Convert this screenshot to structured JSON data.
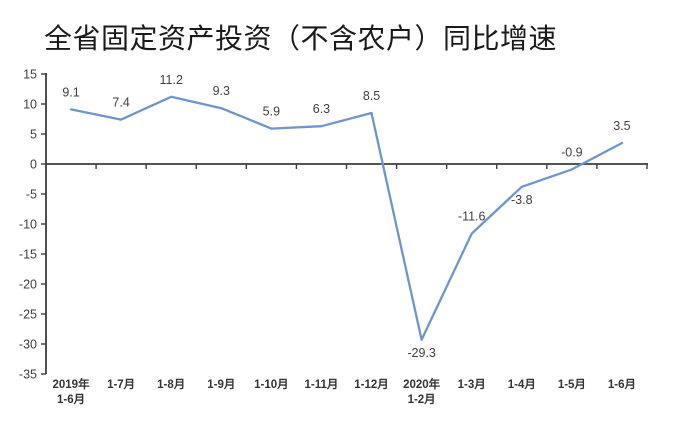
{
  "chart_data": {
    "type": "line",
    "title": "全省固定资产投资（不含农户）同比增速",
    "categories": [
      "2019年\n1-6月",
      "1-7月",
      "1-8月",
      "1-9月",
      "1-10月",
      "1-11月",
      "1-12月",
      "2020年\n1-2月",
      "1-3月",
      "1-4月",
      "1-5月",
      "1-6月"
    ],
    "values": [
      9.1,
      7.4,
      11.2,
      9.3,
      5.9,
      6.3,
      8.5,
      -29.3,
      -11.6,
      -3.8,
      -0.9,
      3.5
    ],
    "data_labels": [
      "9.1",
      "7.4",
      "11.2",
      "9.3",
      "5.9",
      "6.3",
      "8.5",
      "-29.3",
      "-11.6",
      "-3.8",
      "-0.9",
      "3.5"
    ],
    "yticks": [
      15,
      10,
      5,
      0,
      -5,
      -10,
      -15,
      -20,
      -25,
      -30,
      -35
    ],
    "ylim": [
      -35,
      15
    ],
    "xlabel": "",
    "ylabel": "",
    "grid": false,
    "legend": "none",
    "colors": {
      "line": "#6E95CE",
      "axis": "#3d3d3d",
      "tick_label": "#404040",
      "data_label": "#3f3f3f",
      "category_label": "#333333"
    }
  }
}
